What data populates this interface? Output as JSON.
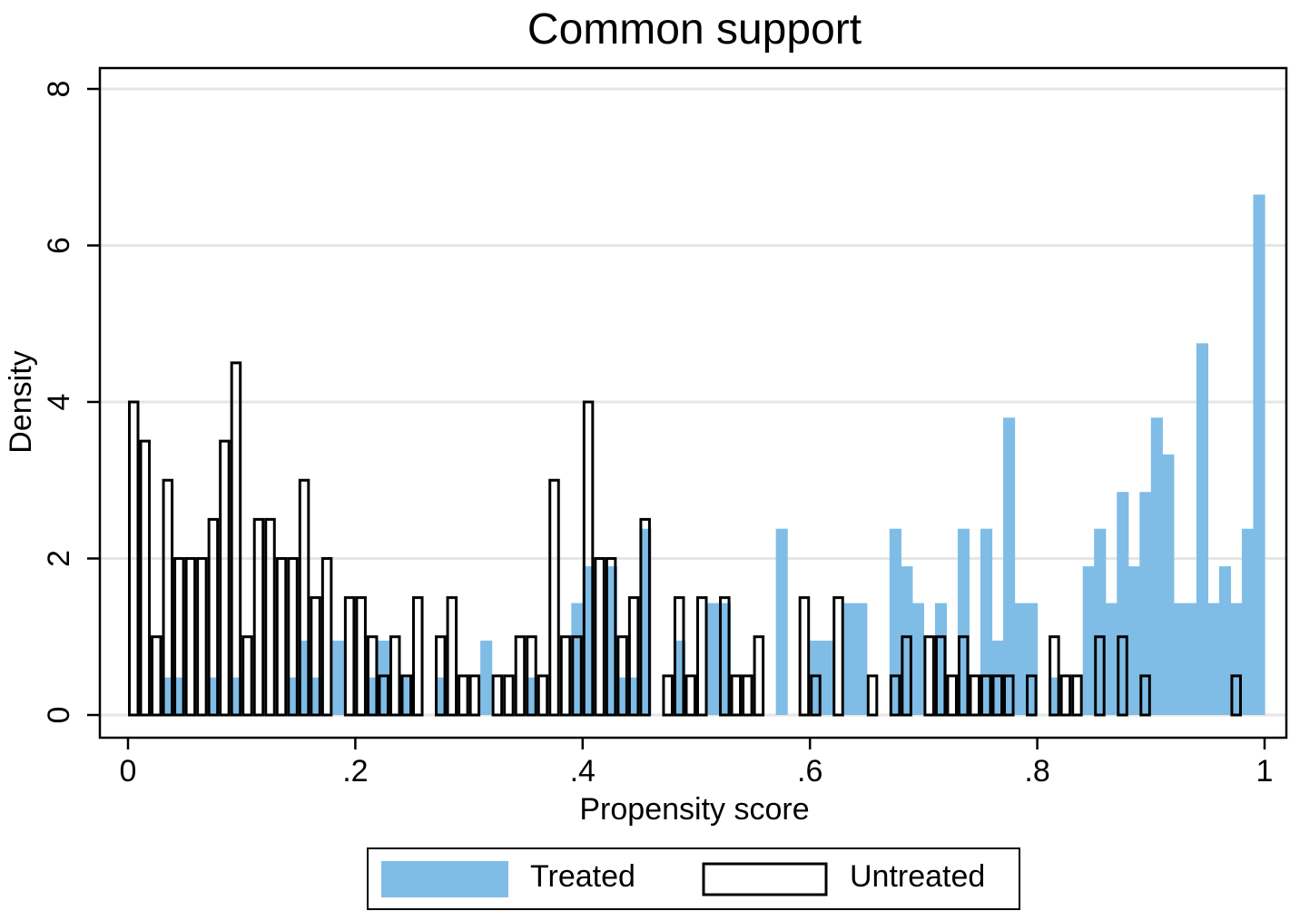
{
  "chart_data": {
    "type": "bar",
    "title": "Common support",
    "xlabel": "Propensity score",
    "ylabel": "Density",
    "xlim": [
      0,
      1
    ],
    "ylim": [
      0,
      8
    ],
    "bin_width": 0.01,
    "x_ticks": [
      0,
      0.2,
      0.4,
      0.6,
      0.8,
      1.0
    ],
    "x_tick_labels": [
      "0",
      ".2",
      ".4",
      ".6",
      ".8",
      "1"
    ],
    "y_ticks": [
      0,
      2,
      4,
      6,
      8
    ],
    "y_tick_labels": [
      "0",
      "2",
      "4",
      "6",
      "8"
    ],
    "grid": true,
    "legend_position": "bottom",
    "colors": {
      "treated": "#7fbde6",
      "untreated_fill": "#ffffff",
      "untreated_stroke": "#000000",
      "grid": "#e6e6e6"
    },
    "series": [
      {
        "name": "Treated",
        "style": "filled",
        "bins": [
          [
            0.03,
            0.48
          ],
          [
            0.04,
            0.48
          ],
          [
            0.07,
            0.48
          ],
          [
            0.09,
            0.48
          ],
          [
            0.14,
            0.48
          ],
          [
            0.15,
            0.95
          ],
          [
            0.16,
            0.48
          ],
          [
            0.18,
            0.95
          ],
          [
            0.21,
            0.48
          ],
          [
            0.22,
            0.95
          ],
          [
            0.24,
            0.48
          ],
          [
            0.27,
            0.48
          ],
          [
            0.31,
            0.95
          ],
          [
            0.35,
            0.48
          ],
          [
            0.39,
            1.43
          ],
          [
            0.4,
            1.9
          ],
          [
            0.42,
            1.9
          ],
          [
            0.43,
            0.48
          ],
          [
            0.44,
            0.48
          ],
          [
            0.45,
            2.38
          ],
          [
            0.48,
            0.95
          ],
          [
            0.51,
            1.43
          ],
          [
            0.52,
            1.43
          ],
          [
            0.57,
            2.38
          ],
          [
            0.6,
            0.95
          ],
          [
            0.61,
            0.95
          ],
          [
            0.63,
            1.43
          ],
          [
            0.64,
            1.43
          ],
          [
            0.67,
            2.38
          ],
          [
            0.68,
            1.9
          ],
          [
            0.69,
            1.43
          ],
          [
            0.71,
            1.43
          ],
          [
            0.73,
            2.38
          ],
          [
            0.75,
            2.38
          ],
          [
            0.76,
            0.95
          ],
          [
            0.77,
            3.8
          ],
          [
            0.78,
            1.43
          ],
          [
            0.79,
            1.43
          ],
          [
            0.81,
            0.48
          ],
          [
            0.84,
            1.9
          ],
          [
            0.85,
            2.38
          ],
          [
            0.86,
            1.43
          ],
          [
            0.87,
            2.85
          ],
          [
            0.88,
            1.9
          ],
          [
            0.89,
            2.85
          ],
          [
            0.9,
            3.8
          ],
          [
            0.91,
            3.33
          ],
          [
            0.92,
            1.43
          ],
          [
            0.93,
            1.43
          ],
          [
            0.94,
            4.75
          ],
          [
            0.95,
            1.43
          ],
          [
            0.96,
            1.9
          ],
          [
            0.97,
            1.43
          ],
          [
            0.98,
            2.38
          ],
          [
            0.99,
            6.65
          ]
        ]
      },
      {
        "name": "Untreated",
        "style": "outline",
        "bins": [
          [
            0.0,
            4.0
          ],
          [
            0.01,
            3.5
          ],
          [
            0.02,
            1.0
          ],
          [
            0.03,
            3.0
          ],
          [
            0.04,
            2.0
          ],
          [
            0.05,
            2.0
          ],
          [
            0.06,
            2.0
          ],
          [
            0.07,
            2.5
          ],
          [
            0.08,
            3.5
          ],
          [
            0.09,
            4.5
          ],
          [
            0.1,
            1.0
          ],
          [
            0.11,
            2.5
          ],
          [
            0.12,
            2.5
          ],
          [
            0.13,
            2.0
          ],
          [
            0.14,
            2.0
          ],
          [
            0.15,
            3.0
          ],
          [
            0.16,
            1.5
          ],
          [
            0.17,
            2.0
          ],
          [
            0.19,
            1.5
          ],
          [
            0.2,
            1.5
          ],
          [
            0.21,
            1.0
          ],
          [
            0.22,
            0.5
          ],
          [
            0.23,
            1.0
          ],
          [
            0.24,
            0.5
          ],
          [
            0.25,
            1.5
          ],
          [
            0.27,
            1.0
          ],
          [
            0.28,
            1.5
          ],
          [
            0.29,
            0.5
          ],
          [
            0.3,
            0.5
          ],
          [
            0.32,
            0.5
          ],
          [
            0.33,
            0.5
          ],
          [
            0.34,
            1.0
          ],
          [
            0.35,
            1.0
          ],
          [
            0.36,
            0.5
          ],
          [
            0.37,
            3.0
          ],
          [
            0.38,
            1.0
          ],
          [
            0.39,
            1.0
          ],
          [
            0.4,
            4.0
          ],
          [
            0.41,
            2.0
          ],
          [
            0.42,
            2.0
          ],
          [
            0.43,
            1.0
          ],
          [
            0.44,
            1.5
          ],
          [
            0.45,
            2.5
          ],
          [
            0.47,
            0.5
          ],
          [
            0.48,
            1.5
          ],
          [
            0.49,
            0.5
          ],
          [
            0.5,
            1.5
          ],
          [
            0.52,
            1.5
          ],
          [
            0.53,
            0.5
          ],
          [
            0.54,
            0.5
          ],
          [
            0.55,
            1.0
          ],
          [
            0.59,
            1.5
          ],
          [
            0.6,
            0.5
          ],
          [
            0.62,
            1.5
          ],
          [
            0.65,
            0.5
          ],
          [
            0.67,
            0.5
          ],
          [
            0.68,
            1.0
          ],
          [
            0.7,
            1.0
          ],
          [
            0.71,
            1.0
          ],
          [
            0.72,
            0.5
          ],
          [
            0.73,
            1.0
          ],
          [
            0.74,
            0.5
          ],
          [
            0.75,
            0.5
          ],
          [
            0.76,
            0.5
          ],
          [
            0.77,
            0.5
          ],
          [
            0.79,
            0.5
          ],
          [
            0.81,
            1.0
          ],
          [
            0.82,
            0.5
          ],
          [
            0.83,
            0.5
          ],
          [
            0.85,
            1.0
          ],
          [
            0.87,
            1.0
          ],
          [
            0.89,
            0.5
          ],
          [
            0.97,
            0.5
          ]
        ]
      }
    ]
  }
}
